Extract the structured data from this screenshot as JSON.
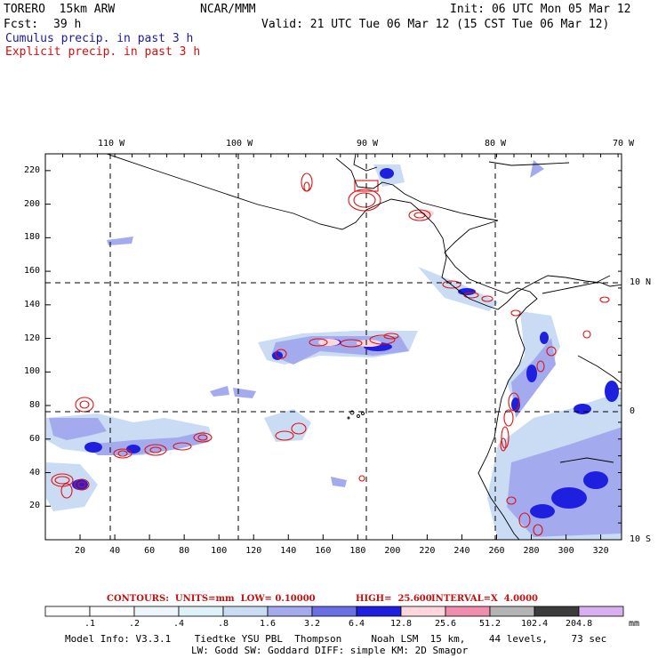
{
  "header": {
    "model": "TORERO  15km ARW",
    "org": "NCAR/MMM",
    "init": "Init: 06 UTC Mon 05 Mar 12",
    "fcst_label": "Fcst:",
    "fcst_value": "39 h",
    "valid": "Valid: 21 UTC Tue 06 Mar 12 (15 CST Tue 06 Mar 12)",
    "field1": "Cumulus precip. in past 3 h",
    "field2": "Explicit precip. in past 3 h"
  },
  "colors": {
    "cumulus": "#1a1aa0",
    "explicit": "#d01010"
  },
  "map": {
    "top_lon_labels": [
      "110 W",
      "100 W",
      "90 W",
      "80 W",
      "70 W"
    ],
    "x_ticks": [
      "20",
      "40",
      "60",
      "80",
      "100",
      "120",
      "140",
      "160",
      "180",
      "200",
      "220",
      "240",
      "260",
      "280",
      "300",
      "320"
    ],
    "y_ticks": [
      "220",
      "200",
      "180",
      "160",
      "140",
      "120",
      "100",
      "80",
      "60",
      "40",
      "20"
    ],
    "lat_labels": [
      "10 N",
      "0",
      "10 S"
    ]
  },
  "contours_text": {
    "label": "CONTOURS:  UNITS=mm  LOW= 0.10000",
    "high": "HIGH=  25.600",
    "interval": "INTERVAL=X  4.0000"
  },
  "colorbar": {
    "unit": "mm",
    "labels": [
      ".1",
      ".2",
      ".4",
      ".8",
      "1.6",
      "3.2",
      "6.4",
      "12.8",
      "25.6",
      "51.2",
      "102.4",
      "204.8"
    ],
    "colors": [
      "#ffffff",
      "#ffffff",
      "#ecf6fa",
      "#def0f8",
      "#c9dcf3",
      "#a3abee",
      "#6b6fe6",
      "#1f1fe0",
      "#ffd6dc",
      "#f08cae",
      "#b4b4b4",
      "#3c3c3c",
      "#d8b0f0"
    ]
  },
  "footer": {
    "line1": "Model Info: V3.3.1    Tiedtke YSU PBL  Thompson     Noah LSM  15 km,    44 levels,    73 sec",
    "line2": "LW: Godd SW: Goddard DIFF: simple KM: 2D Smagor"
  }
}
